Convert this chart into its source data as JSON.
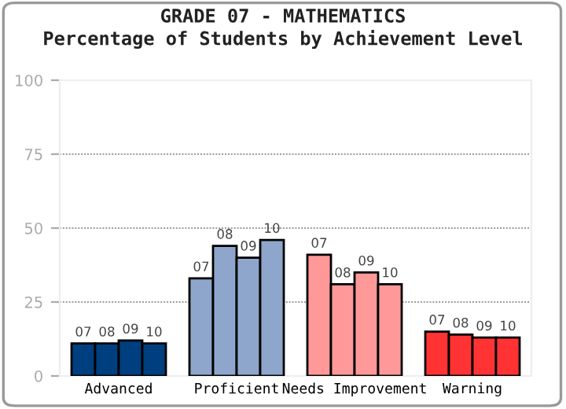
{
  "chart_data": {
    "type": "bar",
    "title": "GRADE 07 - MATHEMATICS",
    "subtitle": "Percentage of Students by Achievement Level",
    "categories": [
      "Advanced",
      "Proficient",
      "Needs Improvement",
      "Warning"
    ],
    "series": [
      {
        "name": "07",
        "colors": [
          "#003f7f",
          "#8ea6cc",
          "#ff9999",
          "#ff3333"
        ],
        "values": [
          11,
          33,
          41,
          15
        ]
      },
      {
        "name": "08",
        "colors": [
          "#003f7f",
          "#8ea6cc",
          "#ff9999",
          "#ff3333"
        ],
        "values": [
          11,
          44,
          31,
          14
        ]
      },
      {
        "name": "09",
        "colors": [
          "#003f7f",
          "#8ea6cc",
          "#ff9999",
          "#ff3333"
        ],
        "values": [
          12,
          40,
          35,
          13
        ]
      },
      {
        "name": "10",
        "colors": [
          "#003f7f",
          "#8ea6cc",
          "#ff9999",
          "#ff3333"
        ],
        "values": [
          11,
          46,
          31,
          13
        ]
      }
    ],
    "ylim": [
      0,
      100
    ],
    "yticks": [
      0,
      25,
      50,
      75,
      100
    ],
    "grid": "y",
    "legend": false
  }
}
